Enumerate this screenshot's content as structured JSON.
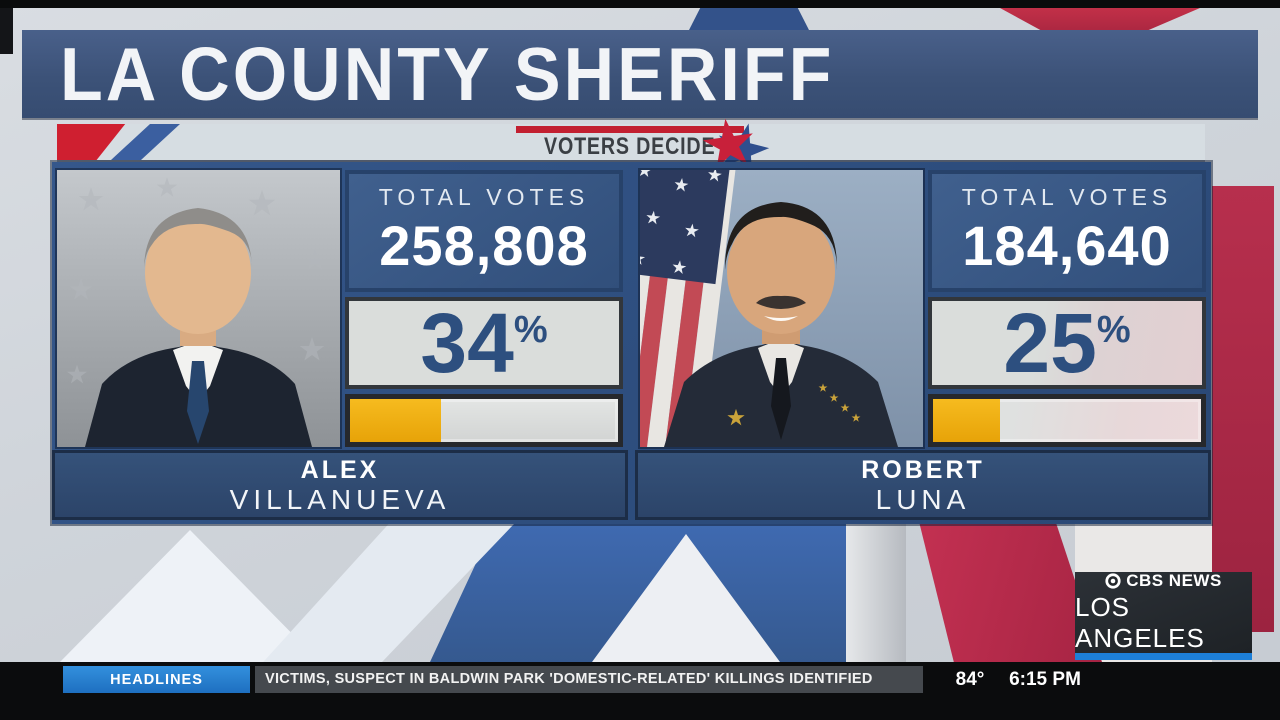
{
  "title": "LA COUNTY SHERIFF",
  "banner": {
    "label": "VOTERS DECIDE"
  },
  "candidates": [
    {
      "name_line1": "ALEX",
      "name_line2": "VILLANUEVA",
      "votes_label": "TOTAL VOTES",
      "votes": "258,808",
      "percent": "34",
      "percent_sign": "%",
      "bar_percent": 34
    },
    {
      "name_line1": "ROBERT",
      "name_line2": "LUNA",
      "votes_label": "TOTAL VOTES",
      "votes": "184,640",
      "percent": "25",
      "percent_sign": "%",
      "bar_percent": 25
    }
  ],
  "station": {
    "brand": "CBS NEWS",
    "city": "LOS ANGELES"
  },
  "ticker": {
    "label": "HEADLINES",
    "headline": "VICTIMS, SUSPECT IN BALDWIN PARK 'DOMESTIC-RELATED' KILLINGS IDENTIFIED",
    "temperature": "84°",
    "time": "6:15 PM"
  },
  "colors": {
    "gold_bar": "#eca90e",
    "panel_navy": "#35537d",
    "percent_text": "#2d4f7f",
    "ticker_blue": "#2386d8",
    "accent_red": "#c6283e"
  },
  "chart_data": {
    "type": "bar",
    "title": "LA COUNTY SHERIFF — VOTERS DECIDE",
    "categories": [
      "ALEX VILLANUEVA",
      "ROBERT LUNA"
    ],
    "series": [
      {
        "name": "Total Votes",
        "values": [
          258808,
          184640
        ]
      },
      {
        "name": "Percent of Vote",
        "values": [
          34,
          25
        ]
      }
    ],
    "value_labels": [
      "258,808",
      "184,640"
    ],
    "percent_labels": [
      "34%",
      "25%"
    ],
    "xlabel": "",
    "ylabel": "",
    "bar_fill_fraction": [
      0.34,
      0.25
    ],
    "legend": "none",
    "grid": false
  }
}
